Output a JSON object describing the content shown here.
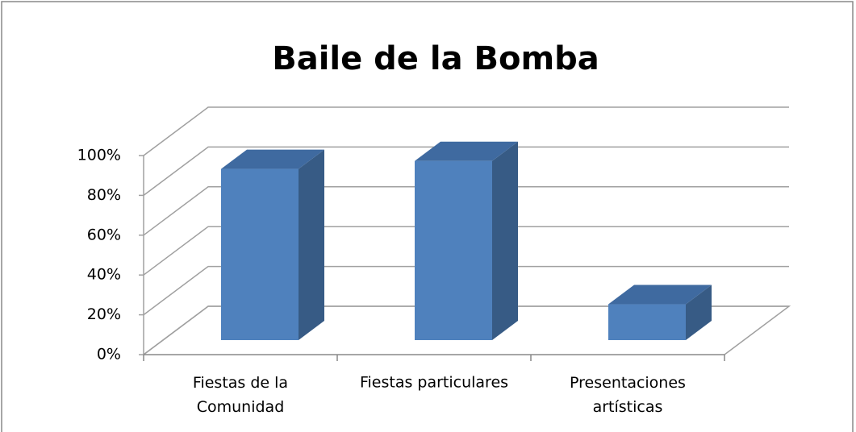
{
  "chart_data": {
    "type": "bar3d",
    "title": "Baile de la Bomba",
    "categories": [
      "Fiestas de la Comunidad",
      "Fiestas particulares",
      "Presentaciones artísticas"
    ],
    "values": [
      86,
      90,
      18
    ],
    "color": "#4f81bd",
    "ylim": [
      0,
      100
    ],
    "yticks": [
      {
        "value": 0,
        "label": "0%"
      },
      {
        "value": 20,
        "label": "20%"
      },
      {
        "value": 40,
        "label": "40%"
      },
      {
        "value": 60,
        "label": "60%"
      },
      {
        "value": 80,
        "label": "80%"
      },
      {
        "value": 100,
        "label": "100%"
      }
    ],
    "grid": true
  }
}
